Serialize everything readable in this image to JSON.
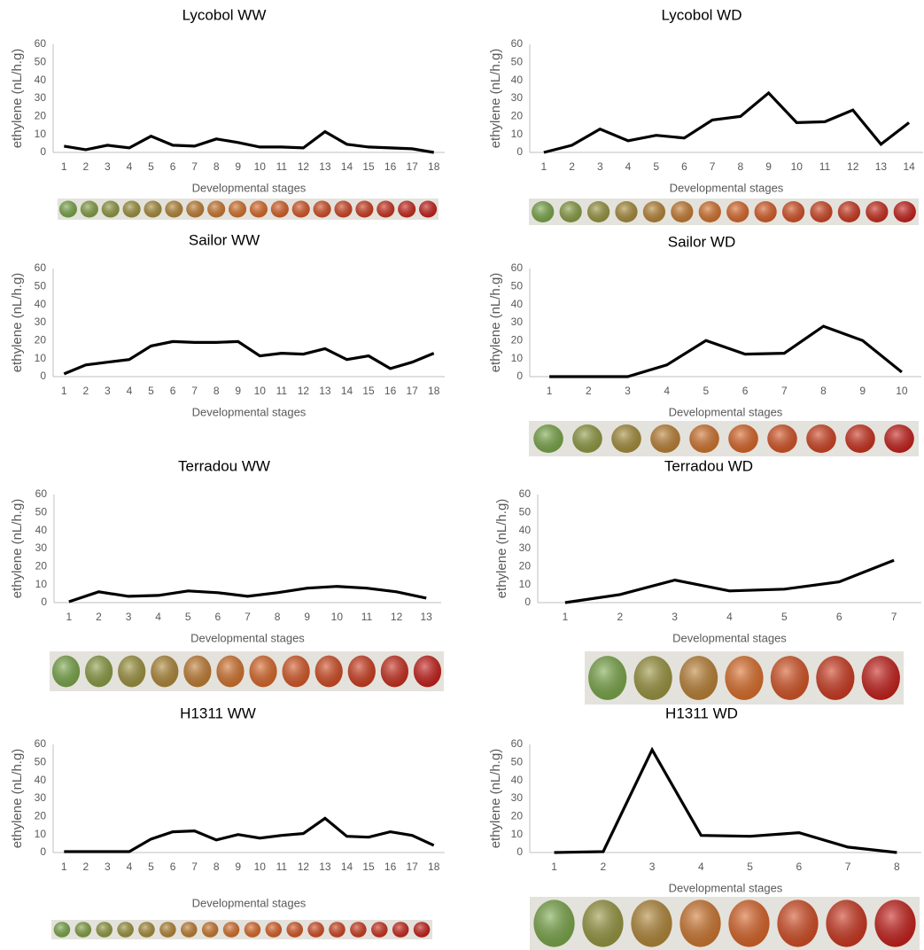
{
  "chart_data": [
    {
      "type": "line",
      "title": "Lycobol WW",
      "y_label": "ethylene (nL/h.g)",
      "x_label": "Developmental stages",
      "color": "#000000",
      "categories": [
        "1",
        "2",
        "3",
        "4",
        "5",
        "6",
        "7",
        "8",
        "9",
        "10",
        "11",
        "12",
        "13",
        "14",
        "15",
        "16",
        "17",
        "18"
      ],
      "values": [
        3.5,
        1.5,
        4,
        2.5,
        9,
        4,
        3.5,
        7.5,
        5.5,
        3,
        3,
        2.5,
        11.5,
        4.5,
        3,
        2.5,
        2,
        0
      ],
      "ylim": [
        0,
        60
      ],
      "yticks": [
        0,
        10,
        20,
        30,
        40,
        50,
        60
      ]
    },
    {
      "type": "line",
      "title": "Lycobol WD",
      "y_label": "ethylene (nL/h.g)",
      "x_label": "Developmental stages",
      "color": "#000000",
      "categories": [
        "1",
        "2",
        "3",
        "4",
        "5",
        "6",
        "7",
        "8",
        "9",
        "10",
        "11",
        "12",
        "13",
        "14"
      ],
      "values": [
        0,
        4,
        13,
        6.5,
        9.5,
        8,
        18,
        20,
        33,
        16.5,
        17,
        23.5,
        4.5,
        16.5
      ],
      "ylim": [
        0,
        60
      ],
      "yticks": [
        0,
        10,
        20,
        30,
        40,
        50,
        60
      ]
    },
    {
      "type": "line",
      "title": "Sailor WW",
      "y_label": "ethylene (nL/h.g)",
      "x_label": "Developmental stages",
      "color": "#000000",
      "categories": [
        "1",
        "2",
        "3",
        "4",
        "5",
        "6",
        "7",
        "8",
        "9",
        "10",
        "11",
        "12",
        "13",
        "14",
        "15",
        "16",
        "17",
        "18"
      ],
      "values": [
        1.5,
        6.5,
        8,
        9.5,
        17,
        19.5,
        19,
        19,
        19.5,
        11.5,
        13,
        12.5,
        15.5,
        9.5,
        11.5,
        4.5,
        8,
        13
      ],
      "ylim": [
        0,
        60
      ],
      "yticks": [
        0,
        10,
        20,
        30,
        40,
        50,
        60
      ]
    },
    {
      "type": "line",
      "title": "Sailor WD",
      "y_label": "ethylene (nL/h.g)",
      "x_label": "Developmental stages",
      "color": "#000000",
      "categories": [
        "1",
        "2",
        "3",
        "4",
        "5",
        "6",
        "7",
        "8",
        "9",
        "10"
      ],
      "values": [
        0,
        0,
        0,
        6.5,
        20,
        12.5,
        13,
        28,
        20,
        2.5
      ],
      "ylim": [
        0,
        60
      ],
      "yticks": [
        0,
        10,
        20,
        30,
        40,
        50,
        60
      ]
    },
    {
      "type": "line",
      "title": "Terradou WW",
      "y_label": "ethylene (nL/h.g)",
      "x_label": "Developmental stages",
      "color": "#000000",
      "categories": [
        "1",
        "2",
        "3",
        "4",
        "5",
        "6",
        "7",
        "8",
        "9",
        "10",
        "11",
        "12",
        "13"
      ],
      "values": [
        0.5,
        6,
        3.5,
        4,
        6.5,
        5.5,
        3.5,
        5.5,
        8,
        9,
        8,
        6,
        2.5
      ],
      "ylim": [
        0,
        60
      ],
      "yticks": [
        0,
        10,
        20,
        30,
        40,
        50,
        60
      ]
    },
    {
      "type": "line",
      "title": "Terradou WD",
      "y_label": "ethylene (nL/h.g)",
      "x_label": "Developmental stages",
      "color": "#000000",
      "categories": [
        "1",
        "2",
        "3",
        "4",
        "5",
        "6",
        "7"
      ],
      "values": [
        0,
        4.5,
        12.5,
        6.5,
        7.5,
        11.5,
        23.5
      ],
      "ylim": [
        0,
        60
      ],
      "yticks": [
        0,
        10,
        20,
        30,
        40,
        50,
        60
      ]
    },
    {
      "type": "line",
      "title": "H1311 WW",
      "y_label": "ethylene (nL/h.g)",
      "x_label": "Developmental stages",
      "color": "#000000",
      "categories": [
        "1",
        "2",
        "3",
        "4",
        "5",
        "6",
        "7",
        "8",
        "9",
        "10",
        "11",
        "12",
        "13",
        "14",
        "15",
        "16",
        "17",
        "18"
      ],
      "values": [
        0.5,
        0.5,
        0.5,
        0.5,
        7.5,
        11.5,
        12,
        7,
        10,
        8,
        9.5,
        10.5,
        19,
        9,
        8.5,
        11.5,
        9.5,
        4
      ],
      "ylim": [
        0,
        60
      ],
      "yticks": [
        0,
        10,
        20,
        30,
        40,
        50,
        60
      ]
    },
    {
      "type": "line",
      "title": "H1311 WD",
      "y_label": "ethylene (nL/h.g)",
      "x_label": "Developmental stages",
      "color": "#000000",
      "categories": [
        "1",
        "2",
        "3",
        "4",
        "5",
        "6",
        "7",
        "8"
      ],
      "values": [
        0,
        0.5,
        57,
        9.5,
        9,
        11,
        3,
        0
      ],
      "ylim": [
        0,
        60
      ],
      "yticks": [
        0,
        10,
        20,
        30,
        40,
        50,
        60
      ]
    }
  ]
}
